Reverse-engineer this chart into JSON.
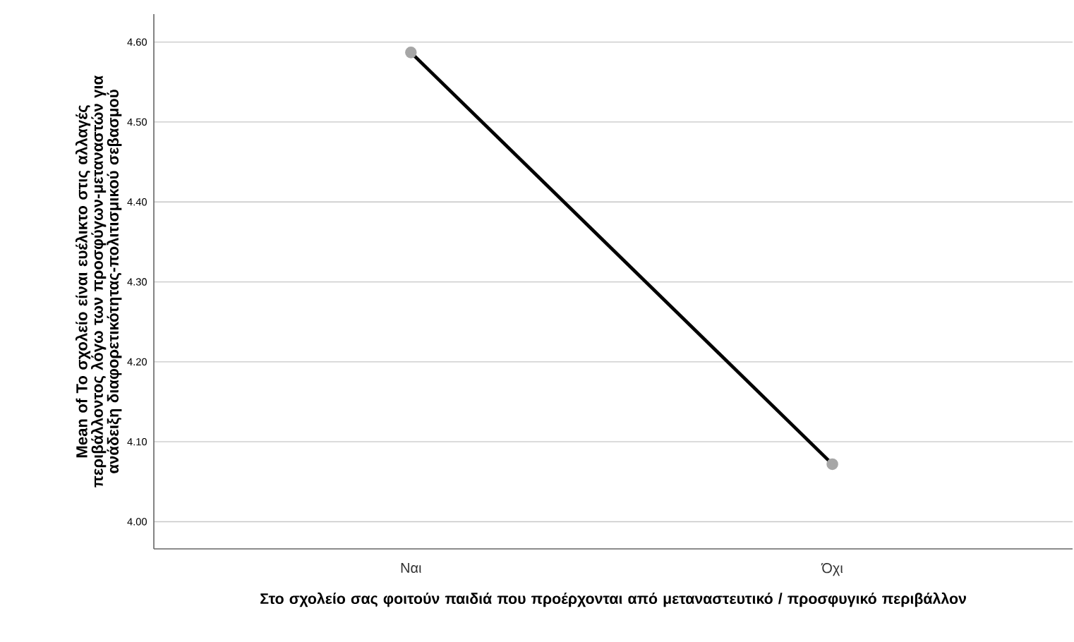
{
  "chart_data": {
    "type": "line",
    "xlabel": "Στο σχολείο σας φοιτούν παιδιά που προέρχονται από μεταναστευτικό / προσφυγικό περιβάλλον",
    "ylabel": "Mean of Το σχολείο είναι ευέλικτο στις αλλαγές περιβάλλοντος λόγω των προσφύγων-μεταναστών για  ανάδειξη διαφορετικότητας-πολιτισμικού σεβασμού",
    "categories": [
      "Ναι",
      "Όχι"
    ],
    "series": [
      {
        "color": "#000000",
        "values": [
          4.587,
          4.072
        ]
      }
    ],
    "ylim": [
      3.966,
      4.635
    ],
    "yticks": [
      {
        "value": 4.0,
        "label": "4.00"
      },
      {
        "value": 4.1,
        "label": "4.10"
      },
      {
        "value": 4.2,
        "label": "4.20"
      },
      {
        "value": 4.3,
        "label": "4.30"
      },
      {
        "value": 4.4,
        "label": "4.40"
      },
      {
        "value": 4.5,
        "label": "4.50"
      },
      {
        "value": 4.6,
        "label": "4.60"
      }
    ],
    "grid": "y",
    "marker": "circle",
    "line_style": "solid"
  }
}
